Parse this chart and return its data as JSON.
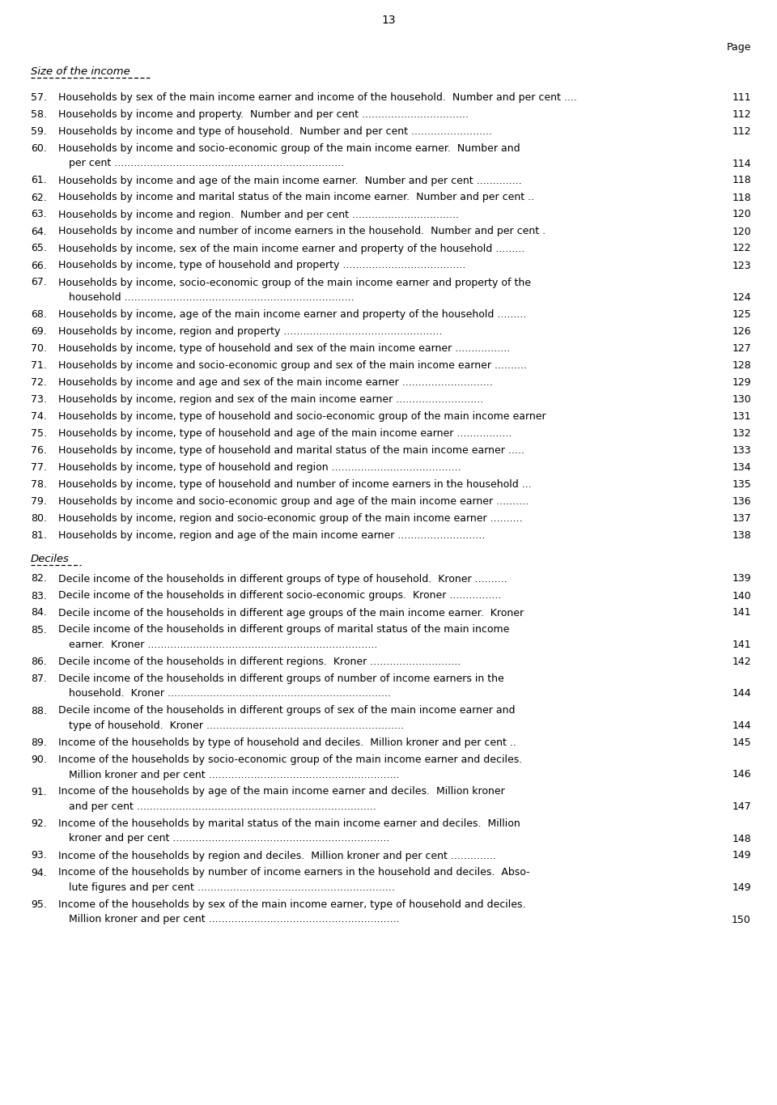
{
  "page_number": "13",
  "page_label": "Page",
  "section1_title": "Size of the income",
  "section2_title": "Deciles",
  "bg_color": "#ffffff",
  "text_color": "#000000",
  "font_size": 9.0,
  "title_font_size": 9.5,
  "entries": [
    {
      "num": "57.",
      "line1": "Households by sex of the main income earner and income of the household.  Number and per cent ....",
      "line2": null,
      "page": "111"
    },
    {
      "num": "58.",
      "line1": "Households by income and property.  Number and per cent .................................",
      "line2": null,
      "page": "112"
    },
    {
      "num": "59.",
      "line1": "Households by income and type of household.  Number and per cent .........................",
      "line2": null,
      "page": "112"
    },
    {
      "num": "60.",
      "line1": "Households by income and socio-economic group of the main income earner.  Number and",
      "line2": "per cent .......................................................................",
      "page": "114"
    },
    {
      "num": "61.",
      "line1": "Households by income and age of the main income earner.  Number and per cent ..............",
      "line2": null,
      "page": "118"
    },
    {
      "num": "62.",
      "line1": "Households by income and marital status of the main income earner.  Number and per cent ..",
      "line2": null,
      "page": "118"
    },
    {
      "num": "63.",
      "line1": "Households by income and region.  Number and per cent .................................",
      "line2": null,
      "page": "120"
    },
    {
      "num": "64.",
      "line1": "Households by income and number of income earners in the household.  Number and per cent .",
      "line2": null,
      "page": "120"
    },
    {
      "num": "65.",
      "line1": "Households by income, sex of the main income earner and property of the household .........",
      "line2": null,
      "page": "122"
    },
    {
      "num": "66.",
      "line1": "Households by income, type of household and property ......................................",
      "line2": null,
      "page": "123"
    },
    {
      "num": "67.",
      "line1": "Households by income, socio-economic group of the main income earner and property of the",
      "line2": "household .......................................................................",
      "page": "124"
    },
    {
      "num": "68.",
      "line1": "Households by income, age of the main income earner and property of the household .........",
      "line2": null,
      "page": "125"
    },
    {
      "num": "69.",
      "line1": "Households by income, region and property .................................................",
      "line2": null,
      "page": "126"
    },
    {
      "num": "70.",
      "line1": "Households by income, type of household and sex of the main income earner .................",
      "line2": null,
      "page": "127"
    },
    {
      "num": "71.",
      "line1": "Households by income and socio-economic group and sex of the main income earner ..........",
      "line2": null,
      "page": "128"
    },
    {
      "num": "72.",
      "line1": "Households by income and age and sex of the main income earner ............................",
      "line2": null,
      "page": "129"
    },
    {
      "num": "73.",
      "line1": "Households by income, region and sex of the main income earner ...........................",
      "line2": null,
      "page": "130"
    },
    {
      "num": "74.",
      "line1": "Households by income, type of household and socio-economic group of the main income earner",
      "line2": null,
      "page": "131"
    },
    {
      "num": "75.",
      "line1": "Households by income, type of household and age of the main income earner .................",
      "line2": null,
      "page": "132"
    },
    {
      "num": "76.",
      "line1": "Households by income, type of household and marital status of the main income earner .....",
      "line2": null,
      "page": "133"
    },
    {
      "num": "77.",
      "line1": "Households by income, type of household and region ........................................",
      "line2": null,
      "page": "134"
    },
    {
      "num": "78.",
      "line1": "Households by income, type of household and number of income earners in the household ...",
      "line2": null,
      "page": "135"
    },
    {
      "num": "79.",
      "line1": "Households by income and socio-economic group and age of the main income earner ..........",
      "line2": null,
      "page": "136"
    },
    {
      "num": "80.",
      "line1": "Households by income, region and socio-economic group of the main income earner ..........",
      "line2": null,
      "page": "137"
    },
    {
      "num": "81.",
      "line1": "Households by income, region and age of the main income earner ...........................",
      "line2": null,
      "page": "138"
    }
  ],
  "decile_entries": [
    {
      "num": "82.",
      "line1": "Decile income of the households in different groups of type of household.  Kroner ..........",
      "line2": null,
      "page": "139"
    },
    {
      "num": "83.",
      "line1": "Decile income of the households in different socio-economic groups.  Kroner ................",
      "line2": null,
      "page": "140"
    },
    {
      "num": "84.",
      "line1": "Decile income of the households in different age groups of the main income earner.  Kroner",
      "line2": null,
      "page": "141"
    },
    {
      "num": "85.",
      "line1": "Decile income of the households in different groups of marital status of the main income",
      "line2": "earner.  Kroner .......................................................................",
      "page": "141"
    },
    {
      "num": "86.",
      "line1": "Decile income of the households in different regions.  Kroner ............................",
      "line2": null,
      "page": "142"
    },
    {
      "num": "87.",
      "line1": "Decile income of the households in different groups of number of income earners in the",
      "line2": "household.  Kroner .....................................................................",
      "page": "144"
    },
    {
      "num": "88.",
      "line1": "Decile income of the households in different groups of sex of the main income earner and",
      "line2": "type of household.  Kroner .............................................................",
      "page": "144"
    },
    {
      "num": "89.",
      "line1": "Income of the households by type of household and deciles.  Million kroner and per cent ..",
      "line2": null,
      "page": "145"
    },
    {
      "num": "90.",
      "line1": "Income of the households by socio-economic group of the main income earner and deciles.",
      "line2": "Million kroner and per cent ...........................................................",
      "page": "146"
    },
    {
      "num": "91.",
      "line1": "Income of the households by age of the main income earner and deciles.  Million kroner",
      "line2": "and per cent ..........................................................................",
      "page": "147"
    },
    {
      "num": "92.",
      "line1": "Income of the households by marital status of the main income earner and deciles.  Million",
      "line2": "kroner and per cent ...................................................................",
      "page": "148"
    },
    {
      "num": "93.",
      "line1": "Income of the households by region and deciles.  Million kroner and per cent ..............",
      "line2": null,
      "page": "149"
    },
    {
      "num": "94.",
      "line1": "Income of the households by number of income earners in the household and deciles.  Abso-",
      "line2": "lute figures and per cent .............................................................",
      "page": "149"
    },
    {
      "num": "95.",
      "line1": "Income of the households by sex of the main income earner, type of household and deciles.",
      "line2": "Million kroner and per cent ...........................................................",
      "page": "150"
    }
  ]
}
